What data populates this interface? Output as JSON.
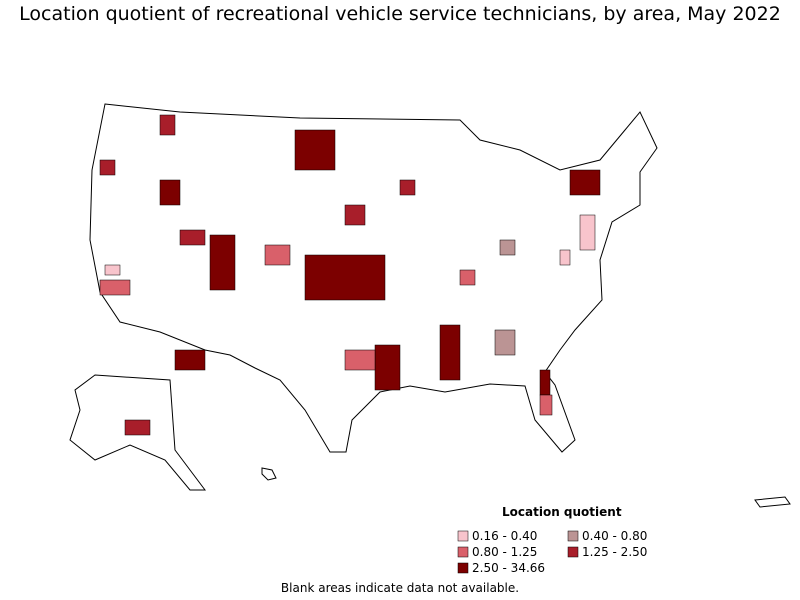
{
  "title": "Location quotient of recreational vehicle service technicians, by area, May 2022",
  "legend": {
    "title": "Location quotient",
    "items": [
      {
        "label": "0.16 - 0.40",
        "color": "#f8c4cc"
      },
      {
        "label": "0.40 - 0.80",
        "color": "#bb9494"
      },
      {
        "label": "0.80 - 1.25",
        "color": "#d9606a"
      },
      {
        "label": "1.25 - 2.50",
        "color": "#a81e2a"
      },
      {
        "label": "2.50 - 34.66",
        "color": "#7c0000"
      }
    ]
  },
  "note": "Blank areas indicate data not available."
}
